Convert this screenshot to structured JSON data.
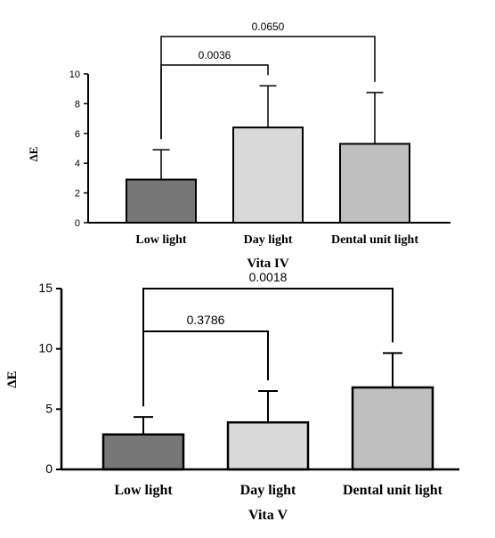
{
  "chart_data": [
    {
      "type": "bar",
      "title": "Vita IV",
      "ylabel": "ΔE",
      "ylim": [
        0,
        10
      ],
      "yticks": [
        0,
        2,
        4,
        6,
        8,
        10
      ],
      "categories": [
        "Low light",
        "Day light",
        "Dental unit light"
      ],
      "values": [
        2.9,
        6.4,
        5.3
      ],
      "error_upper": [
        4.9,
        9.2,
        8.75
      ],
      "bar_colors": [
        "#777777",
        "#d9d9d9",
        "#bfbfbf"
      ],
      "comparisons": [
        {
          "from": 0,
          "to": 1,
          "p": "0.0036"
        },
        {
          "from": 0,
          "to": 2,
          "p": "0.0650"
        }
      ]
    },
    {
      "type": "bar",
      "title": "Vita V",
      "ylabel": "ΔE",
      "ylim": [
        0,
        15
      ],
      "yticks": [
        0,
        5,
        10,
        15
      ],
      "categories": [
        "Low light",
        "Day light",
        "Dental unit light"
      ],
      "values": [
        2.9,
        3.9,
        6.8
      ],
      "error_upper": [
        4.35,
        6.5,
        9.65
      ],
      "bar_colors": [
        "#777777",
        "#d9d9d9",
        "#bfbfbf"
      ],
      "comparisons": [
        {
          "from": 0,
          "to": 1,
          "p": "0.3786"
        },
        {
          "from": 0,
          "to": 2,
          "p": "0.0018"
        }
      ]
    }
  ]
}
